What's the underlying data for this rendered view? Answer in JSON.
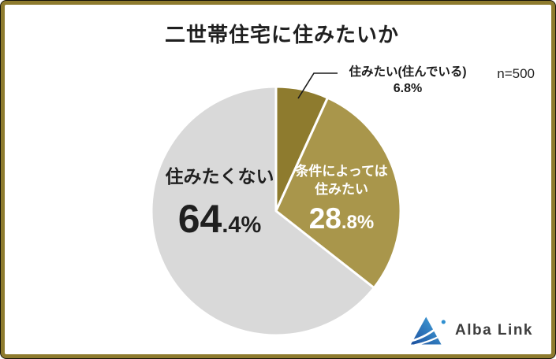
{
  "title": "二世帯住宅に住みたいか",
  "sample_size": "n=500",
  "chart_data": {
    "type": "pie",
    "title": "二世帯住宅に住みたいか",
    "sample_size_label": "n=500",
    "start_angle_deg": 0,
    "direction": "clockwise",
    "separator_color": "#ffffff",
    "legend_position": "labels-on-chart",
    "slices": [
      {
        "label": "住みたい(住んでいる)",
        "value": 6.8,
        "display": "6.8%",
        "color": "#8e7b2e"
      },
      {
        "label": "条件によっては住みたい",
        "value": 28.8,
        "display": "28.8%",
        "color": "#a9964b"
      },
      {
        "label": "住みたくない",
        "value": 64.4,
        "display": "64.4%",
        "color": "#d9d9d9"
      }
    ]
  },
  "slice_labels": {
    "yes": {
      "text": "住みたい(住んでいる)",
      "pct": "6.8%"
    },
    "conditional": {
      "line1": "条件によっては",
      "line2": "住みたい",
      "pct_int": "28",
      "pct_frac": ".8%"
    },
    "no": {
      "text": "住みたくない",
      "pct_int": "64",
      "pct_frac": ".4%"
    }
  },
  "logo": {
    "text": "Alba Link",
    "triangle_color_dark": "#1b4f9e",
    "triangle_color_light": "#45a6dd"
  },
  "colors": {
    "frame_gold": "#8e7b2e",
    "slice_dark_gold": "#8e7b2e",
    "slice_gold": "#a9964b",
    "slice_gray": "#d9d9d9",
    "text_dark": "#1f1f1f"
  }
}
